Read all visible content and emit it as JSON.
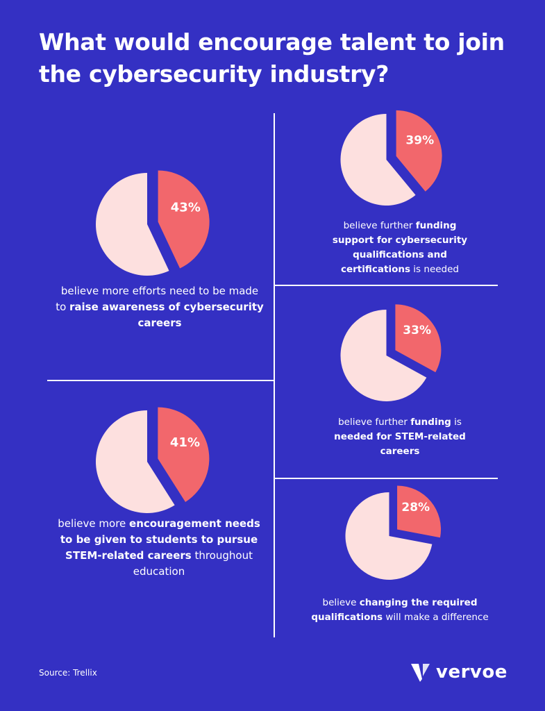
{
  "title": "What would encourage talent to join the cybersecurity industry?",
  "chart_data": [
    {
      "type": "pie",
      "values": [
        43,
        57
      ],
      "label": "43%",
      "caption": [
        {
          "text": "believe more efforts need to be made to ",
          "bold": false
        },
        {
          "text": "raise awareness of cybersecurity careers",
          "bold": true
        }
      ]
    },
    {
      "type": "pie",
      "values": [
        41,
        59
      ],
      "label": "41%",
      "caption": [
        {
          "text": "believe more ",
          "bold": false
        },
        {
          "text": "encouragement needs to be given to students to pursue STEM-related careers",
          "bold": true
        },
        {
          "text": " throughout education",
          "bold": false
        }
      ]
    },
    {
      "type": "pie",
      "values": [
        39,
        61
      ],
      "label": "39%",
      "caption": [
        {
          "text": "believe further ",
          "bold": false
        },
        {
          "text": "funding support for cybersecurity qualifications and certifications",
          "bold": true
        },
        {
          "text": " is needed",
          "bold": false
        }
      ]
    },
    {
      "type": "pie",
      "values": [
        33,
        67
      ],
      "label": "33%",
      "caption": [
        {
          "text": "believe further ",
          "bold": false
        },
        {
          "text": "funding",
          "bold": true
        },
        {
          "text": " is ",
          "bold": false
        },
        {
          "text": "needed for STEM-related careers",
          "bold": true
        }
      ]
    },
    {
      "type": "pie",
      "values": [
        28,
        72
      ],
      "label": "28%",
      "caption": [
        {
          "text": "believe ",
          "bold": false
        },
        {
          "text": "changing the required qualifications",
          "bold": true
        },
        {
          "text": " will make a difference",
          "bold": false
        }
      ]
    }
  ],
  "colors": {
    "background": "#3430c3",
    "highlight": "#f2676c",
    "remainder": "#fde0df",
    "text": "#ffffff"
  },
  "source": "Source: Trellix",
  "logo": {
    "name": "vervoe-logo",
    "text": "vervoe"
  }
}
